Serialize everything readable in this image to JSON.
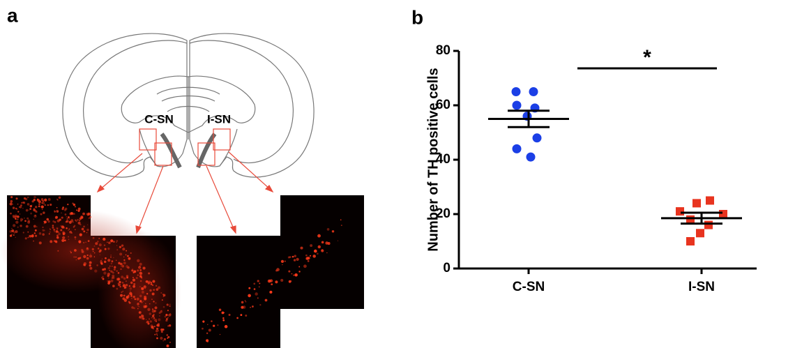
{
  "figure": {
    "panel_a": {
      "label": "a",
      "region_labels": [
        "C-SN",
        "I-SN"
      ]
    },
    "panel_b": {
      "label": "b"
    }
  },
  "chart_data": {
    "type": "strip",
    "ylabel": "Number of TH positive cells",
    "categories": [
      "C-SN",
      "I-SN"
    ],
    "series": [
      {
        "color": "#1b3fe6",
        "marker": "circle",
        "values": [
          65,
          65,
          60,
          59,
          56,
          48,
          44,
          41
        ],
        "mean": 55,
        "sem": 3
      },
      {
        "color": "#e8341f",
        "marker": "square",
        "values": [
          25,
          24,
          21,
          20,
          18,
          16,
          13,
          10
        ],
        "mean": 18.5,
        "sem": 2
      }
    ],
    "ylim": [
      0,
      80
    ],
    "yticks": [
      0,
      20,
      40,
      60,
      80
    ],
    "significance": {
      "label": "*",
      "y": 73.6
    }
  }
}
